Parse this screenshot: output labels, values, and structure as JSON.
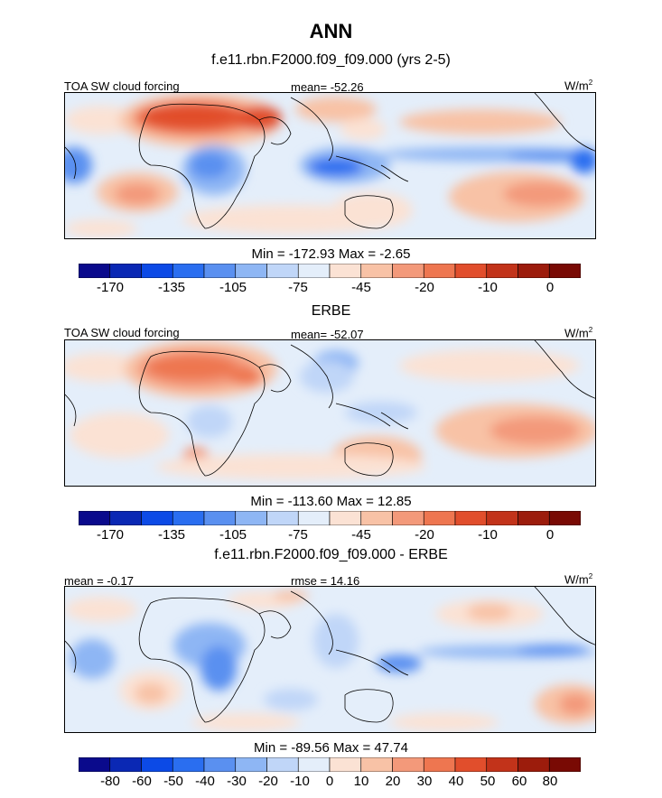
{
  "main_title": "ANN",
  "panels": [
    {
      "title": "f.e11.rbn.F2000.f09_f09.000 (yrs 2-5)",
      "left_label": "TOA SW cloud forcing",
      "center_label": "mean= -52.26",
      "units": "W/m",
      "units_sup": "2",
      "minmax": "Min = -172.93 Max =  -2.65"
    },
    {
      "title": "ERBE",
      "left_label": "TOA SW cloud forcing",
      "center_label": "mean= -52.07",
      "units": "W/m",
      "units_sup": "2",
      "minmax": "Min = -113.60 Max =  12.85"
    },
    {
      "title": "f.e11.rbn.F2000.f09_f09.000 - ERBE",
      "left_label": "mean =  -0.17",
      "center_label": "rmse =  14.16",
      "units": "W/m",
      "units_sup": "2",
      "minmax": "Min = -89.56 Max =  47.74"
    }
  ],
  "colorbars": {
    "colors": [
      "#0a0a8c",
      "#0a28b4",
      "#0c4ae6",
      "#2a6ef0",
      "#5a90f0",
      "#8eb6f4",
      "#c0d6f8",
      "#e4eefa",
      "#fbe2d4",
      "#f8c2a6",
      "#f3997a",
      "#ee7650",
      "#e14e2c",
      "#c2331a",
      "#9c1c0c",
      "#790a04"
    ],
    "absolute_ticks": [
      "-170",
      "-135",
      "-105",
      "-75",
      "-45",
      "-20",
      "-10",
      "0"
    ],
    "diff_ticks": [
      "-80",
      "-60",
      "-50",
      "-40",
      "-30",
      "-20",
      "-10",
      "0",
      "10",
      "20",
      "30",
      "40",
      "50",
      "60",
      "80"
    ]
  },
  "chart_data": [
    {
      "type": "heatmap",
      "title": "f.e11.rbn.F2000.f09_f09.000 (yrs 2-5)",
      "variable": "TOA SW cloud forcing",
      "units": "W/m2",
      "mean": -52.26,
      "min": -172.93,
      "max": -2.65,
      "colorbar_ticks": [
        -170,
        -135,
        -105,
        -75,
        -45,
        -20,
        -10,
        0
      ]
    },
    {
      "type": "heatmap",
      "title": "ERBE",
      "variable": "TOA SW cloud forcing",
      "units": "W/m2",
      "mean": -52.07,
      "min": -113.6,
      "max": 12.85,
      "colorbar_ticks": [
        -170,
        -135,
        -105,
        -75,
        -45,
        -20,
        -10,
        0
      ]
    },
    {
      "type": "heatmap",
      "title": "f.e11.rbn.F2000.f09_f09.000 - ERBE",
      "units": "W/m2",
      "mean": -0.17,
      "rmse": 14.16,
      "min": -89.56,
      "max": 47.74,
      "colorbar_ticks": [
        -80,
        -60,
        -50,
        -40,
        -30,
        -20,
        -10,
        0,
        10,
        20,
        30,
        40,
        50,
        60,
        80
      ]
    }
  ]
}
